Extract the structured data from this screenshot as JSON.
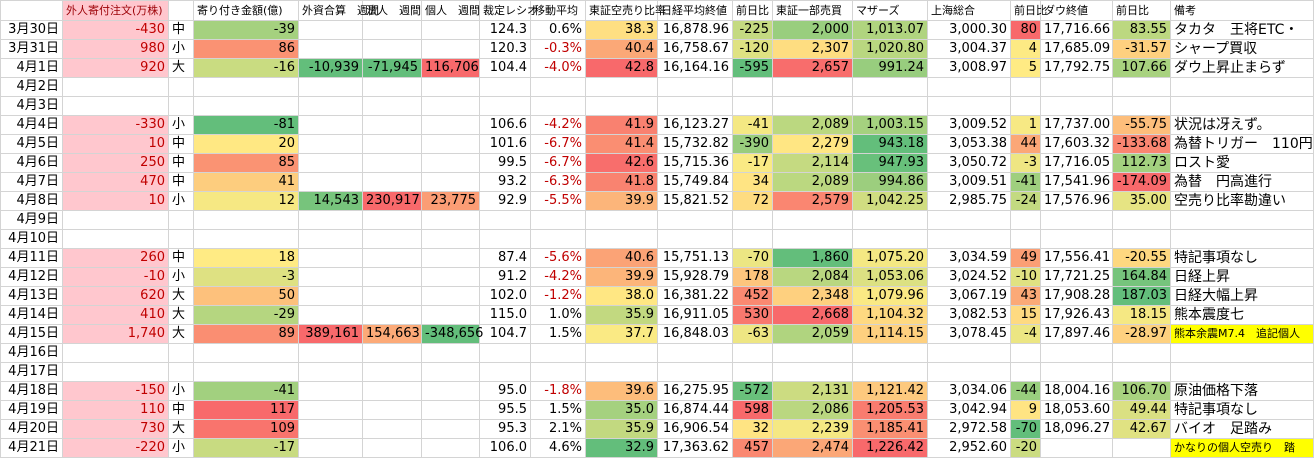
{
  "table": {
    "headers": [
      null,
      "外人寄付注文(万株)",
      null,
      "寄り付き金額(億)",
      "外資合算　週間",
      "法人　週間",
      "個人　週間",
      "裁定レシオ",
      "移動平均",
      "東証空売り比率",
      "日経平均終値",
      "前日比",
      "東証一部売買",
      "マザーズ",
      "上海総合",
      "前日比",
      "ダウ終値",
      "前日比",
      "備考"
    ],
    "rows": [
      [
        "3月30日",
        "-430",
        "中",
        "-39",
        null,
        null,
        null,
        "124.3",
        "0.6%",
        "38.3",
        "16,878.96",
        "-225",
        "2,000",
        "1,013.07",
        "3,000.30",
        "80",
        "17,716.66",
        "83.55",
        "タカタ　王将ETC・"
      ],
      [
        "3月31日",
        "980",
        "小",
        "86",
        null,
        null,
        null,
        "120.3",
        "-0.3%",
        "40.4",
        "16,758.67",
        "-120",
        "2,307",
        "1,020.80",
        "3,004.37",
        "4",
        "17,685.09",
        "-31.57",
        "シャープ買収"
      ],
      [
        "4月1日",
        "920",
        "大",
        "-16",
        "-10,939",
        "-71,945",
        "116,706",
        "104.4",
        "-4.0%",
        "42.8",
        "16,164.16",
        "-595",
        "2,657",
        "991.24",
        "3,008.97",
        "5",
        "17,792.75",
        "107.66",
        "ダウ上昇止まらず"
      ],
      [
        "4月2日",
        null,
        null,
        null,
        null,
        null,
        null,
        null,
        null,
        null,
        null,
        null,
        null,
        null,
        null,
        null,
        null,
        null,
        null
      ],
      [
        "4月3日",
        null,
        null,
        null,
        null,
        null,
        null,
        null,
        null,
        null,
        null,
        null,
        null,
        null,
        null,
        null,
        null,
        null,
        null
      ],
      [
        "4月4日",
        "-330",
        "小",
        "-81",
        null,
        null,
        null,
        "106.6",
        "-4.2%",
        "41.9",
        "16,123.27",
        "-41",
        "2,089",
        "1,003.15",
        "3,009.52",
        "1",
        "17,737.00",
        "-55.75",
        "状況は冴えず。"
      ],
      [
        "4月5日",
        "10",
        "中",
        "20",
        null,
        null,
        null,
        "101.6",
        "-6.7%",
        "41.4",
        "15,732.82",
        "-390",
        "2,279",
        "943.18",
        "3,053.38",
        "44",
        "17,603.32",
        "-133.68",
        "為替トリガー　110円"
      ],
      [
        "4月6日",
        "250",
        "中",
        "85",
        null,
        null,
        null,
        "99.5",
        "-6.7%",
        "42.6",
        "15,715.36",
        "-17",
        "2,114",
        "947.93",
        "3,050.72",
        "-3",
        "17,716.05",
        "112.73",
        "ロスト愛"
      ],
      [
        "4月7日",
        "470",
        "中",
        "41",
        null,
        null,
        null,
        "93.2",
        "-6.3%",
        "41.8",
        "15,749.84",
        "34",
        "2,089",
        "994.86",
        "3,009.51",
        "-41",
        "17,541.96",
        "-174.09",
        "為替　円高進行"
      ],
      [
        "4月8日",
        "10",
        "小",
        "12",
        "14,543",
        "230,917",
        "23,775",
        "92.9",
        "-5.5%",
        "39.9",
        "15,821.52",
        "72",
        "2,579",
        "1,042.25",
        "2,985.75",
        "-24",
        "17,576.96",
        "35.00",
        "空売り比率勘違い"
      ],
      [
        "4月9日",
        null,
        null,
        null,
        null,
        null,
        null,
        null,
        null,
        null,
        null,
        null,
        null,
        null,
        null,
        null,
        null,
        null,
        null
      ],
      [
        "4月10日",
        null,
        null,
        null,
        null,
        null,
        null,
        null,
        null,
        null,
        null,
        null,
        null,
        null,
        null,
        null,
        null,
        null,
        null
      ],
      [
        "4月11日",
        "260",
        "中",
        "18",
        null,
        null,
        null,
        "87.4",
        "-5.6%",
        "40.6",
        "15,751.13",
        "-70",
        "1,860",
        "1,075.20",
        "3,034.59",
        "49",
        "17,556.41",
        "-20.55",
        "特記事項なし"
      ],
      [
        "4月12日",
        "-10",
        "小",
        "-3",
        null,
        null,
        null,
        "91.2",
        "-4.2%",
        "39.9",
        "15,928.79",
        "178",
        "2,084",
        "1,053.06",
        "3,024.52",
        "-10",
        "17,721.25",
        "164.84",
        "日経上昇"
      ],
      [
        "4月13日",
        "620",
        "大",
        "50",
        null,
        null,
        null,
        "102.0",
        "-1.2%",
        "38.0",
        "16,381.22",
        "452",
        "2,348",
        "1,079.96",
        "3,067.19",
        "43",
        "17,908.28",
        "187.03",
        "日経大幅上昇"
      ],
      [
        "4月14日",
        "410",
        "大",
        "-29",
        null,
        null,
        null,
        "115.0",
        "1.0%",
        "35.9",
        "16,911.05",
        "530",
        "2,668",
        "1,104.32",
        "3,082.53",
        "15",
        "17,926.43",
        "18.15",
        "熊本震度七"
      ],
      [
        "4月15日",
        "1,740",
        "大",
        "89",
        "389,161",
        "154,663",
        "-348,656",
        "104.7",
        "1.5%",
        "37.7",
        "16,848.03",
        "-63",
        "2,059",
        "1,114.15",
        "3,078.45",
        "-4",
        "17,897.46",
        "-28.97",
        "熊本余震M7.4　追記個人"
      ],
      [
        "4月16日",
        null,
        null,
        null,
        null,
        null,
        null,
        null,
        null,
        null,
        null,
        null,
        null,
        null,
        null,
        null,
        null,
        null,
        null
      ],
      [
        "4月17日",
        null,
        null,
        null,
        null,
        null,
        null,
        null,
        null,
        null,
        null,
        null,
        null,
        null,
        null,
        null,
        null,
        null,
        null
      ],
      [
        "4月18日",
        "-150",
        "小",
        "-41",
        null,
        null,
        null,
        "95.0",
        "-1.8%",
        "39.6",
        "16,275.95",
        "-572",
        "2,131",
        "1,121.42",
        "3,034.06",
        "-44",
        "18,004.16",
        "106.70",
        "原油価格下落"
      ],
      [
        "4月19日",
        "110",
        "中",
        "117",
        null,
        null,
        null,
        "95.5",
        "1.5%",
        "35.0",
        "16,874.44",
        "598",
        "2,086",
        "1,205.53",
        "3,042.94",
        "9",
        "18,053.60",
        "49.44",
        "特記事項なし"
      ],
      [
        "4月20日",
        "730",
        "大",
        "109",
        null,
        null,
        null,
        "95.3",
        "2.1%",
        "35.9",
        "16,906.54",
        "32",
        "2,239",
        "1,185.41",
        "2,972.58",
        "-70",
        "18,096.27",
        "42.67",
        "バイオ　足踏み"
      ],
      [
        "4月21日",
        "-220",
        "小",
        "-17",
        null,
        null,
        null,
        "106.0",
        "4.6%",
        "32.9",
        "17,363.62",
        "457",
        "2,474",
        "1,226.42",
        "2,952.60",
        "-20",
        null,
        null,
        "かなりの個人空売り　踏"
      ]
    ]
  }
}
